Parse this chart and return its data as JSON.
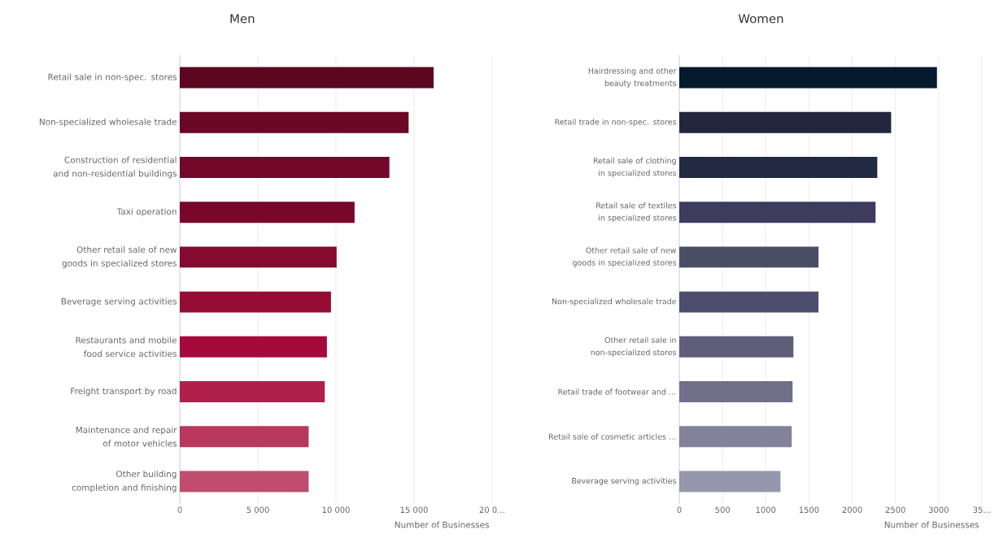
{
  "chart_data": [
    {
      "type": "bar",
      "orientation": "horizontal",
      "title": "Men",
      "xlabel": "Number of Businesses",
      "grid": "x",
      "categories": [
        "Retail sale in non-spec. stores",
        "Non-specialized wholesale trade",
        "Construction of residential and non-residential buildings",
        "Taxi operation",
        "Other retail sale of new goods in specialized stores",
        "Beverage serving activities",
        "Restaurants and mobile food service activities",
        "Freight transport by road",
        "Maintenance and repair of motor vehicles",
        "Other building completion and finishing"
      ],
      "values": [
        16250,
        14650,
        13420,
        11190,
        10040,
        9680,
        9420,
        9280,
        8250,
        8250
      ],
      "colors": [
        "#5c0620",
        "#6b0727",
        "#720729",
        "#78072b",
        "#850a2f",
        "#950c35",
        "#a60a3c",
        "#b0204a",
        "#b8385e",
        "#c04d6e"
      ],
      "xlim": [
        0,
        20000
      ],
      "xticks": [
        0,
        {
          "value": 5000,
          "label": "5 000"
        },
        {
          "value": 10000,
          "label": "10 000"
        },
        {
          "value": 15000,
          "label": "15 000"
        },
        {
          "value": 20000,
          "label": "20 0…"
        }
      ]
    },
    {
      "type": "bar",
      "orientation": "horizontal",
      "title": "Women",
      "xlabel": "Number of Businesses",
      "grid": "x",
      "categories": [
        "Hairdressing and other beauty treatments",
        "Retail trade in non-spec. stores",
        "Retail sale of clothing in specialized stores",
        "Retail sale of textiles in specialized stores",
        "Other retail sale of new goods in specialized stores",
        "Non-specialized wholesale trade",
        "Other retail sale in non-specialized stores",
        "Retail trade of footwear and …",
        "Retail sale of cosmetic articles …",
        "Beverage serving activities"
      ],
      "values": [
        2980,
        2450,
        2290,
        2270,
        1610,
        1610,
        1320,
        1310,
        1300,
        1170
      ],
      "colors": [
        "#061a2e",
        "#22263f",
        "#222942",
        "#3d3c5e",
        "#4a4f66",
        "#4d4d6d",
        "#5e5e7a",
        "#70708a",
        "#82829a",
        "#9697aa"
      ],
      "xlim": [
        0,
        3500
      ],
      "xticks": [
        0,
        500,
        1000,
        1500,
        2000,
        2500,
        3000,
        {
          "value": 3500,
          "label": "35…"
        }
      ]
    }
  ]
}
